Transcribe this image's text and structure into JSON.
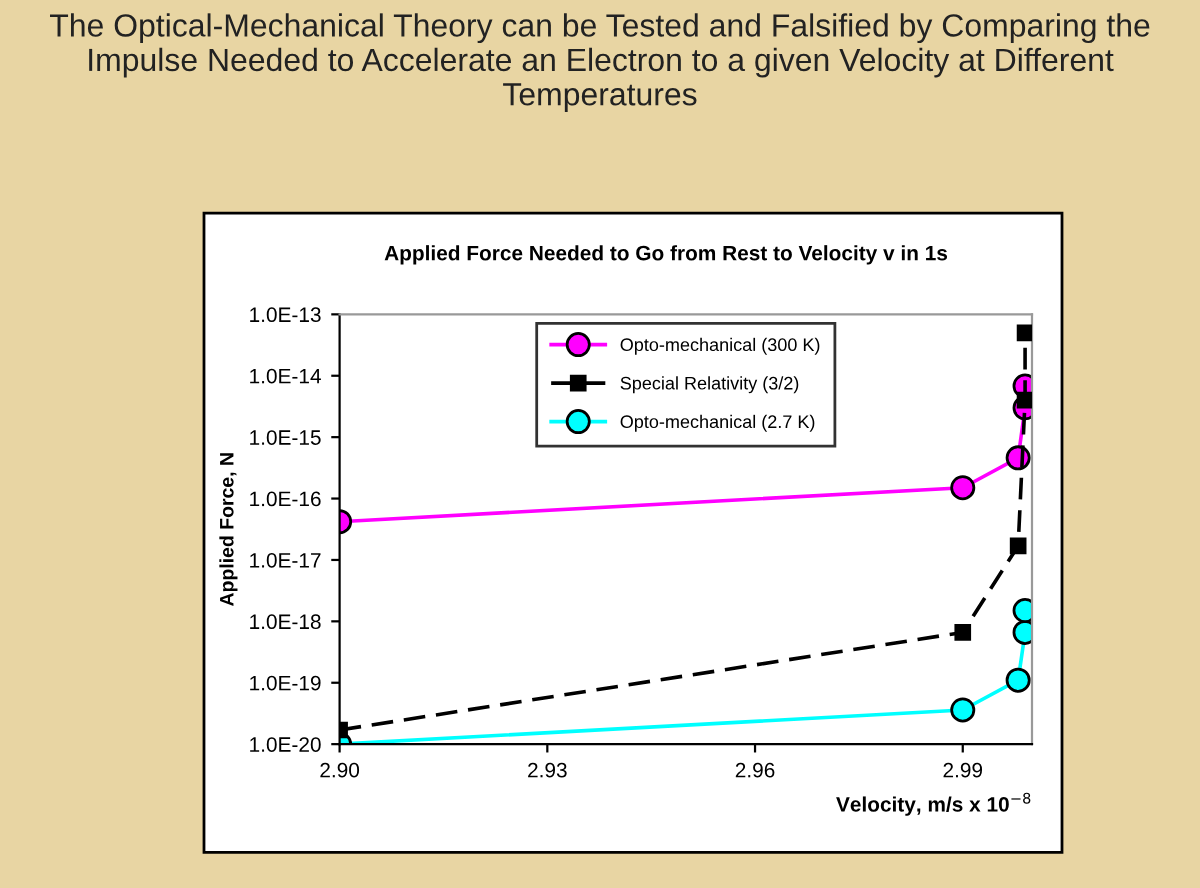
{
  "chart_data": {
    "type": "line",
    "title": "The Optical-Mechanical Theory can be Tested and Falsified by Comparing the Impulse Needed to Accelerate an Electron to a given Velocity at Different Temperatures",
    "subtitle": "Applied Force Needed to Go from Rest to Velocity v in 1s",
    "xlabel": "Velocity, m/s x 10$^{−8}$",
    "ylabel": "Applied Force, N",
    "log": "y",
    "grid": false,
    "legend": "top",
    "xlim": [
      2.9,
      3.0
    ],
    "xticks": [
      {
        "value": 2.9,
        "label": "2.90"
      },
      {
        "value": 2.93,
        "label": "2.93"
      },
      {
        "value": 2.96,
        "label": "2.96"
      },
      {
        "value": 2.99,
        "label": "2.99"
      }
    ],
    "ylim": [
      1e-20,
      1e-13
    ],
    "yticks": [
      {
        "value": 1e-20,
        "label": "1.0E-20"
      },
      {
        "value": 1e-19,
        "label": "1.0E-19"
      },
      {
        "value": 1e-18,
        "label": "1.0E-18"
      },
      {
        "value": 1e-17,
        "label": "1.0E-17"
      },
      {
        "value": 1e-16,
        "label": "1.0E-16"
      },
      {
        "value": 1e-15,
        "label": "1.0E-15"
      },
      {
        "value": 1e-14,
        "label": "1.0E-14"
      },
      {
        "value": 1e-13,
        "label": "1.0E-13"
      }
    ],
    "series": [
      {
        "name": "Opto-mechanical (300 K)",
        "color": "#ff00ff",
        "marker": "circle",
        "line_style": "solid",
        "x": [
          2.9,
          2.99,
          2.998,
          2.999,
          2.999
        ],
        "values": [
          4.2e-17,
          1.5e-16,
          4.6e-16,
          3e-15,
          6.8e-15
        ]
      },
      {
        "name": "Special Relativity (3/2)",
        "color": "#000000",
        "marker": "square",
        "line_style": "dashed",
        "x": [
          2.9,
          2.99,
          2.998,
          2.999,
          2.999
        ],
        "values": [
          1.7e-20,
          6.6e-19,
          1.7e-17,
          4e-15,
          5e-14
        ]
      },
      {
        "name": "Opto-mechanical (2.7 K)",
        "color": "#00ffff",
        "marker": "circle",
        "line_style": "solid",
        "x": [
          2.9,
          2.99,
          2.998,
          2.999,
          2.999
        ],
        "values": [
          1e-20,
          3.6e-20,
          1.1e-19,
          6.6e-19,
          1.5e-18
        ]
      }
    ]
  }
}
